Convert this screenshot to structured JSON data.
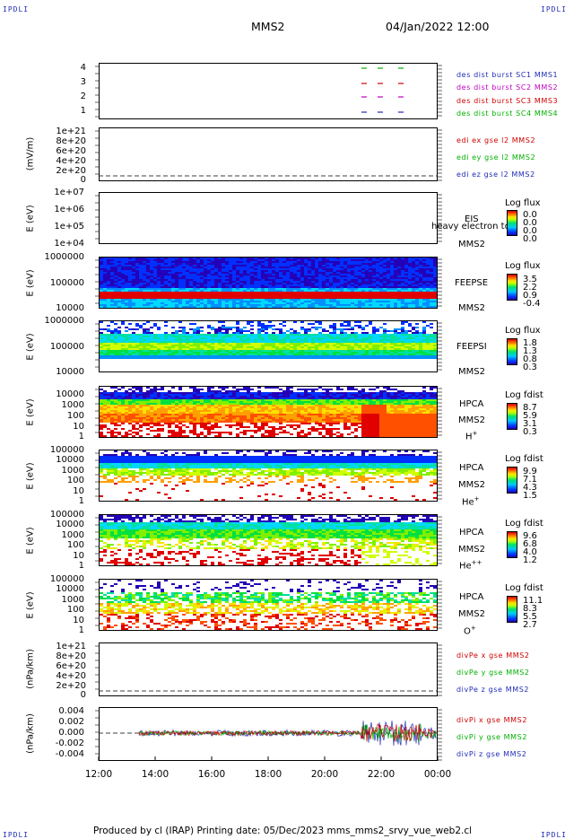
{
  "corners": {
    "tl": "IPDLI",
    "tr": "IPDLI",
    "bl": "IPDLI",
    "br": "IPDLI"
  },
  "header": {
    "title": "MMS2",
    "datetime": "04/Jan/2022 12:00"
  },
  "footer": {
    "text": "Produced by cl (IRAP)   Printing date: 05/Dec/2023   mms_mms2_srvy_vue_web2.cl"
  },
  "x_axis": {
    "ticks": [
      "12:00",
      "14:00",
      "16:00",
      "18:00",
      "20:00",
      "22:00",
      "00:00"
    ]
  },
  "panels": [
    {
      "id": "p1",
      "ticks": [
        "4",
        "3",
        "2",
        "1"
      ],
      "legend": [
        {
          "text": "des dist burst SC1 MMS1",
          "color": "#1f2cb5"
        },
        {
          "text": "des dist burst SC2 MMS2",
          "color": "#c000c0"
        },
        {
          "text": "des dist burst SC3 MMS3",
          "color": "#d00000"
        },
        {
          "text": "des dist burst SC4 MMS4",
          "color": "#00b000"
        }
      ]
    },
    {
      "id": "p2",
      "ylabel": "(mV/m)",
      "ticks": [
        "1e+21",
        "8e+20",
        "6e+20",
        "4e+20",
        "2e+20",
        "0"
      ],
      "legend": [
        {
          "text": "edi ex gse l2 MMS2",
          "color": "#d00000"
        },
        {
          "text": "edi ey gse l2 MMS2",
          "color": "#00b000"
        },
        {
          "text": "edi ez gse l2 MMS2",
          "color": "#1f2cb5"
        }
      ]
    },
    {
      "id": "p3",
      "ylabel": "E (eV)",
      "ticks": [
        "1e+07",
        "1e+06",
        "1e+05",
        "1e+04"
      ],
      "labels": [
        "EIS",
        "MMS2"
      ],
      "overlap": "heavy electron to",
      "cbtitle": "Log flux",
      "cbvals": [
        "0.0",
        "0.0",
        "0.0",
        "0.0"
      ]
    },
    {
      "id": "p4",
      "ylabel": "E (eV)",
      "ticks": [
        "1000000",
        "100000",
        "10000"
      ],
      "labels": [
        "FEEPSE",
        "MMS2"
      ],
      "cbtitle": "Log flux",
      "cbvals": [
        "3.5",
        "2.2",
        "0.9",
        "-0.4"
      ]
    },
    {
      "id": "p5",
      "ylabel": "E (eV)",
      "ticks": [
        "1000000",
        "100000",
        "10000"
      ],
      "labels": [
        "FEEPSI",
        "MMS2"
      ],
      "cbtitle": "Log flux",
      "cbvals": [
        "1.8",
        "1.3",
        "0.8",
        "0.3"
      ]
    },
    {
      "id": "p6",
      "ylabel": "E (eV)",
      "ticks": [
        "10000",
        "1000",
        "100",
        "10",
        "1"
      ],
      "labels": [
        "HPCA",
        "MMS2",
        "H+"
      ],
      "cbtitle": "Log fdist",
      "cbvals": [
        "8.7",
        "5.9",
        "3.1",
        "0.3"
      ]
    },
    {
      "id": "p7",
      "ylabel": "E (eV)",
      "ticks": [
        "100000",
        "10000",
        "1000",
        "100",
        "10",
        "1"
      ],
      "labels": [
        "HPCA",
        "MMS2",
        "He+"
      ],
      "cbtitle": "Log fdist",
      "cbvals": [
        "9.9",
        "7.1",
        "4.3",
        "1.5"
      ]
    },
    {
      "id": "p8",
      "ylabel": "E (eV)",
      "ticks": [
        "100000",
        "10000",
        "1000",
        "100",
        "10",
        "1"
      ],
      "labels": [
        "HPCA",
        "MMS2",
        "He++"
      ],
      "cbtitle": "Log fdist",
      "cbvals": [
        "9.6",
        "6.8",
        "4.0",
        "1.2"
      ]
    },
    {
      "id": "p9",
      "ylabel": "E (eV)",
      "ticks": [
        "100000",
        "10000",
        "1000",
        "100",
        "10",
        "1"
      ],
      "labels": [
        "HPCA",
        "MMS2",
        "O+"
      ],
      "cbtitle": "Log fdist",
      "cbvals": [
        "11.1",
        "8.3",
        "5.5",
        "2.7"
      ]
    },
    {
      "id": "p10",
      "ylabel": "(nPa/km)",
      "ticks": [
        "1e+21",
        "8e+20",
        "6e+20",
        "4e+20",
        "2e+20",
        "0"
      ],
      "legend": [
        {
          "text": "divPe x gse MMS2",
          "color": "#d00000"
        },
        {
          "text": "divPe y gse MMS2",
          "color": "#00b000"
        },
        {
          "text": "divPe z gse MMS2",
          "color": "#1f2cb5"
        }
      ]
    },
    {
      "id": "p11",
      "ylabel": "(nPa/km)",
      "ticks": [
        "0.004",
        "0.002",
        "0.000",
        "-0.002",
        "-0.004"
      ],
      "legend": [
        {
          "text": "divPi x gse MMS2",
          "color": "#d00000"
        },
        {
          "text": "divPi y gse MMS2",
          "color": "#00b000"
        },
        {
          "text": "divPi z gse MMS2",
          "color": "#1f2cb5"
        }
      ]
    }
  ],
  "chart_data": [
    {
      "type": "scatter",
      "title": "des dist burst",
      "x": [
        "21:15",
        "21:45",
        "22:15",
        "22:45"
      ],
      "series": [
        {
          "name": "des dist burst SC1 MMS1",
          "y": 1
        },
        {
          "name": "des dist burst SC2 MMS2",
          "y": 2
        },
        {
          "name": "des dist burst SC3 MMS3",
          "y": 3
        },
        {
          "name": "des dist burst SC4 MMS4",
          "y": 4
        }
      ],
      "ylim": [
        0.5,
        4.5
      ]
    },
    {
      "type": "line",
      "ylabel": "(mV/m)",
      "series": [
        {
          "name": "edi ex gse l2 MMS2"
        },
        {
          "name": "edi ey gse l2 MMS2"
        },
        {
          "name": "edi ez gse l2 MMS2"
        }
      ],
      "ylim": [
        0,
        1e+21
      ],
      "values": "no data"
    },
    {
      "type": "heatmap",
      "name": "EIS",
      "ylabel": "E (eV)",
      "ylim": [
        10000.0,
        10000000.0
      ],
      "yscale": "log",
      "values": "no data"
    },
    {
      "type": "heatmap",
      "name": "FEEPSE",
      "ylabel": "E (eV)",
      "ylim": [
        10000.0,
        1000000.0
      ],
      "yscale": "log",
      "colorbar": "Log flux",
      "crange": [
        -0.4,
        3.5
      ]
    },
    {
      "type": "heatmap",
      "name": "FEEPSI",
      "ylabel": "E (eV)",
      "ylim": [
        10000.0,
        1000000.0
      ],
      "yscale": "log",
      "colorbar": "Log flux",
      "crange": [
        0.3,
        1.8
      ]
    },
    {
      "type": "heatmap",
      "name": "HPCA H+",
      "ylabel": "E (eV)",
      "ylim": [
        1,
        30000.0
      ],
      "yscale": "log",
      "colorbar": "Log fdist",
      "crange": [
        0.3,
        8.7
      ]
    },
    {
      "type": "heatmap",
      "name": "HPCA He+",
      "ylabel": "E (eV)",
      "ylim": [
        1,
        100000.0
      ],
      "yscale": "log",
      "colorbar": "Log fdist",
      "crange": [
        1.5,
        9.9
      ]
    },
    {
      "type": "heatmap",
      "name": "HPCA He++",
      "ylabel": "E (eV)",
      "ylim": [
        1,
        100000.0
      ],
      "yscale": "log",
      "colorbar": "Log fdist",
      "crange": [
        1.2,
        9.6
      ]
    },
    {
      "type": "heatmap",
      "name": "HPCA O+",
      "ylabel": "E (eV)",
      "ylim": [
        1,
        100000.0
      ],
      "yscale": "log",
      "colorbar": "Log fdist",
      "crange": [
        2.7,
        11.1
      ]
    },
    {
      "type": "line",
      "ylabel": "(nPa/km)",
      "series": [
        {
          "name": "divPe x gse MMS2"
        },
        {
          "name": "divPe y gse MMS2"
        },
        {
          "name": "divPe z gse MMS2"
        }
      ],
      "ylim": [
        0,
        1e+21
      ],
      "values": "no data"
    },
    {
      "type": "line",
      "ylabel": "(nPa/km)",
      "series": [
        {
          "name": "divPi x gse MMS2"
        },
        {
          "name": "divPi y gse MMS2"
        },
        {
          "name": "divPi z gse MMS2"
        }
      ],
      "ylim": [
        -0.005,
        0.005
      ],
      "x_start": "13:25",
      "x_end": "00:00"
    }
  ]
}
